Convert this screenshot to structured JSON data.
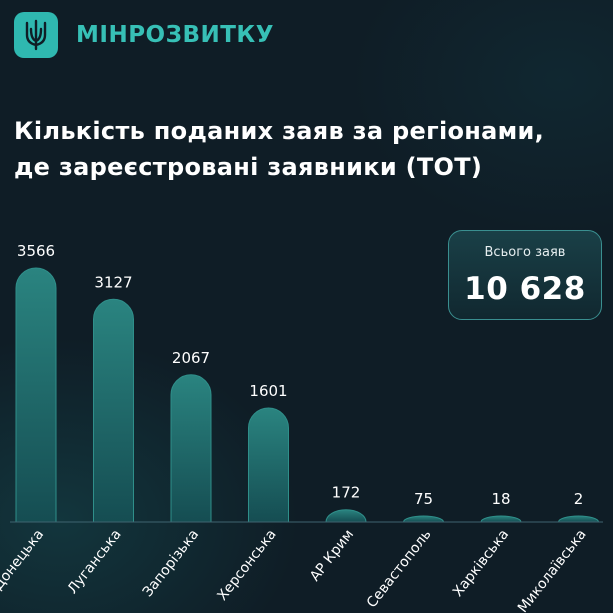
{
  "header": {
    "brand": "МІНРОЗВИТКУ",
    "logo_icon": "trident-icon"
  },
  "chart_data": {
    "type": "bar",
    "title_lines": [
      "Кількість поданих заяв за регіонами,",
      "де зареєстровані заявники (ТОТ)"
    ],
    "categories": [
      "Донецька",
      "Луганська",
      "Запорізька",
      "Херсонська",
      "АР Крим",
      "Севастополь",
      "Харківська",
      "Миколаївська"
    ],
    "values": [
      3566,
      3127,
      2067,
      1601,
      172,
      75,
      18,
      2
    ],
    "ylim": [
      0,
      3566
    ],
    "grid": false,
    "bar_color": "#1c6a6a"
  },
  "summary": {
    "label": "Всього заяв",
    "value": "10 628"
  },
  "colors": {
    "background": "#0f1d26",
    "accent": "#37c0b6"
  }
}
